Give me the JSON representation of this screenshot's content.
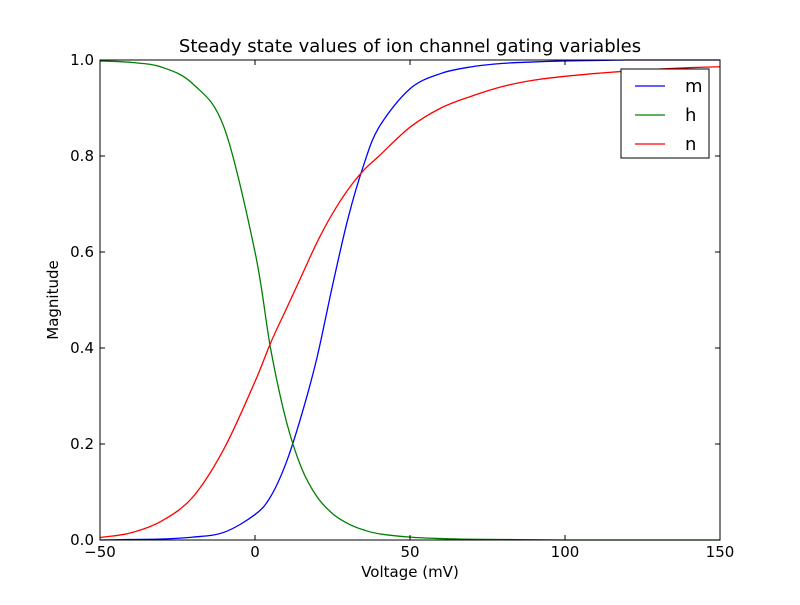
{
  "chart_data": {
    "type": "line",
    "title": "Steady state values of ion channel gating variables",
    "xlabel": "Voltage (mV)",
    "ylabel": "Magnitude",
    "xlim": [
      -50,
      150
    ],
    "ylim": [
      0.0,
      1.0
    ],
    "grid": false,
    "legend_position": "top-right",
    "x_ticks": [
      -50,
      0,
      50,
      100,
      150
    ],
    "x_tick_labels": [
      "−50",
      "0",
      "50",
      "100",
      "150"
    ],
    "y_ticks": [
      0.0,
      0.2,
      0.4,
      0.6,
      0.8,
      1.0
    ],
    "y_tick_labels": [
      "0.0",
      "0.2",
      "0.4",
      "0.6",
      "0.8",
      "1.0"
    ],
    "x": [
      -50,
      -40,
      -30,
      -20,
      -10,
      0,
      5,
      10,
      15,
      20,
      25,
      30,
      35,
      40,
      50,
      60,
      70,
      80,
      90,
      100,
      110,
      120,
      130,
      140,
      150
    ],
    "series": [
      {
        "name": "m",
        "color": "#0000ff",
        "values": [
          0.0,
          0.001,
          0.002,
          0.006,
          0.016,
          0.053,
          0.09,
          0.16,
          0.26,
          0.38,
          0.53,
          0.67,
          0.78,
          0.86,
          0.94,
          0.972,
          0.986,
          0.993,
          0.996,
          0.998,
          0.999,
          1.0,
          1.0,
          1.0,
          1.0
        ]
      },
      {
        "name": "h",
        "color": "#008000",
        "values": [
          0.998,
          0.995,
          0.985,
          0.95,
          0.86,
          0.6,
          0.4,
          0.25,
          0.15,
          0.09,
          0.055,
          0.034,
          0.021,
          0.013,
          0.006,
          0.003,
          0.0015,
          0.001,
          0.0005,
          0.0,
          0.0,
          0.0,
          0.0,
          0.0,
          0.0
        ]
      },
      {
        "name": "n",
        "color": "#ff0000",
        "values": [
          0.005,
          0.015,
          0.04,
          0.09,
          0.19,
          0.33,
          0.41,
          0.48,
          0.55,
          0.62,
          0.68,
          0.73,
          0.77,
          0.8,
          0.86,
          0.9,
          0.925,
          0.945,
          0.958,
          0.966,
          0.972,
          0.977,
          0.981,
          0.984,
          0.986
        ]
      }
    ]
  }
}
